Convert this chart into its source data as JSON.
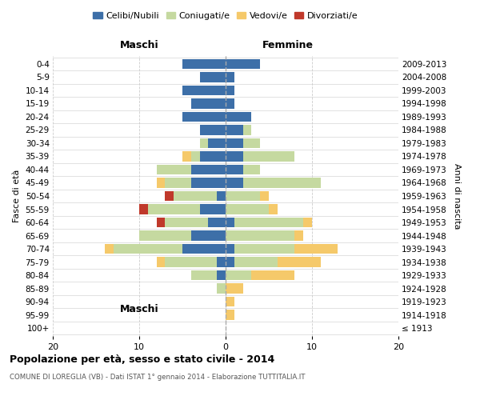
{
  "age_groups": [
    "100+",
    "95-99",
    "90-94",
    "85-89",
    "80-84",
    "75-79",
    "70-74",
    "65-69",
    "60-64",
    "55-59",
    "50-54",
    "45-49",
    "40-44",
    "35-39",
    "30-34",
    "25-29",
    "20-24",
    "15-19",
    "10-14",
    "5-9",
    "0-4"
  ],
  "birth_years": [
    "≤ 1913",
    "1914-1918",
    "1919-1923",
    "1924-1928",
    "1929-1933",
    "1934-1938",
    "1939-1943",
    "1944-1948",
    "1949-1953",
    "1954-1958",
    "1959-1963",
    "1964-1968",
    "1969-1973",
    "1974-1978",
    "1979-1983",
    "1984-1988",
    "1989-1993",
    "1994-1998",
    "1999-2003",
    "2004-2008",
    "2009-2013"
  ],
  "maschi": {
    "celibi": [
      0,
      0,
      0,
      0,
      1,
      1,
      5,
      4,
      2,
      3,
      1,
      4,
      4,
      3,
      2,
      3,
      5,
      4,
      5,
      3,
      5
    ],
    "coniugati": [
      0,
      0,
      0,
      1,
      3,
      6,
      8,
      6,
      5,
      6,
      5,
      3,
      4,
      1,
      1,
      0,
      0,
      0,
      0,
      0,
      0
    ],
    "vedovi": [
      0,
      0,
      0,
      0,
      0,
      1,
      1,
      0,
      0,
      0,
      0,
      1,
      0,
      1,
      0,
      0,
      0,
      0,
      0,
      0,
      0
    ],
    "divorziati": [
      0,
      0,
      0,
      0,
      0,
      0,
      0,
      0,
      1,
      1,
      1,
      0,
      0,
      0,
      0,
      0,
      0,
      0,
      0,
      0,
      0
    ]
  },
  "femmine": {
    "nubili": [
      0,
      0,
      0,
      0,
      0,
      1,
      1,
      0,
      1,
      0,
      0,
      2,
      2,
      2,
      2,
      2,
      3,
      1,
      1,
      1,
      4
    ],
    "coniugate": [
      0,
      0,
      0,
      0,
      3,
      5,
      7,
      8,
      8,
      5,
      4,
      9,
      2,
      6,
      2,
      1,
      0,
      0,
      0,
      0,
      0
    ],
    "vedove": [
      0,
      1,
      1,
      2,
      5,
      5,
      5,
      1,
      1,
      1,
      1,
      0,
      0,
      0,
      0,
      0,
      0,
      0,
      0,
      0,
      0
    ],
    "divorziate": [
      0,
      0,
      0,
      0,
      0,
      0,
      0,
      0,
      0,
      0,
      0,
      0,
      0,
      0,
      0,
      0,
      0,
      0,
      0,
      0,
      0
    ]
  },
  "colors": {
    "celibi_nubili": "#3d6fa8",
    "coniugati": "#c5d9a0",
    "vedovi": "#f5c96a",
    "divorziati": "#c0392b"
  },
  "xlim": 20,
  "title": "Popolazione per età, sesso e stato civile - 2014",
  "subtitle": "COMUNE DI LOREGLIA (VB) - Dati ISTAT 1° gennaio 2014 - Elaborazione TUTTITALIA.IT",
  "ylabel_left": "Fasce di età",
  "ylabel_right": "Anni di nascita",
  "xlabel_maschi": "Maschi",
  "xlabel_femmine": "Femmine",
  "legend_labels": [
    "Celibi/Nubili",
    "Coniugati/e",
    "Vedovi/e",
    "Divorziati/e"
  ],
  "bg_color": "#ffffff",
  "grid_color": "#cccccc"
}
